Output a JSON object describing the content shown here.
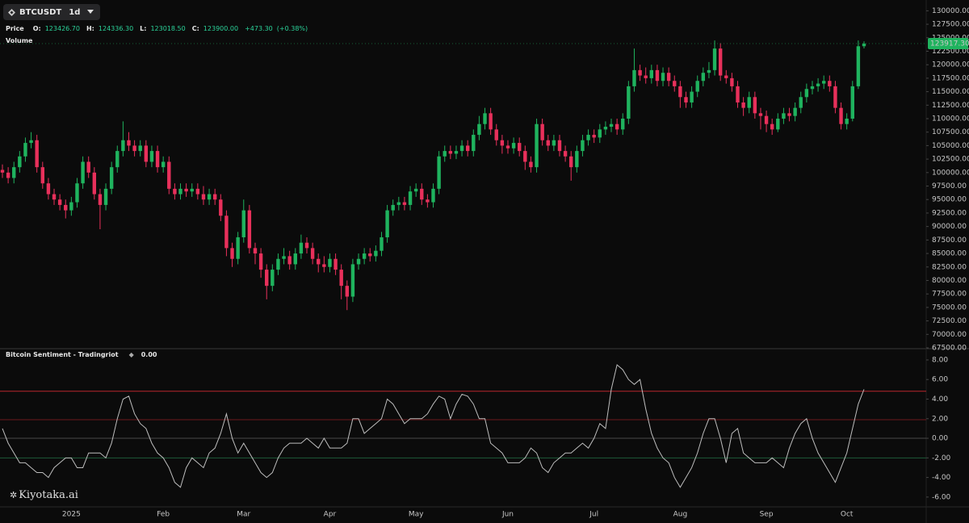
{
  "header": {
    "symbol": "BTCUSDT",
    "interval": "1d",
    "price_label": "Price",
    "ohlc": [
      {
        "label": "O:",
        "value": "123426.70"
      },
      {
        "label": "H:",
        "value": "124336.30"
      },
      {
        "label": "L:",
        "value": "123018.50"
      },
      {
        "label": "C:",
        "value": "123900.00"
      }
    ],
    "change": "+473.30",
    "change_pct": "(+0.38%)",
    "volume_label": "Volume",
    "watermark": "Kiyotaka.ai"
  },
  "chart_data": [
    {
      "type": "candlestick",
      "up_color": "#1fb35e",
      "down_color": "#e8305b",
      "categories": [
        null,
        null,
        null,
        null,
        null,
        null,
        null,
        null,
        null,
        null,
        null,
        null,
        "2025",
        null,
        null,
        null,
        null,
        null,
        null,
        null,
        null,
        null,
        null,
        null,
        null,
        null,
        null,
        null,
        "Feb",
        null,
        null,
        null,
        null,
        null,
        null,
        null,
        null,
        null,
        null,
        null,
        null,
        null,
        "Mar",
        null,
        null,
        null,
        null,
        null,
        null,
        null,
        null,
        null,
        null,
        null,
        null,
        null,
        null,
        "Apr",
        null,
        null,
        null,
        null,
        null,
        null,
        null,
        null,
        null,
        null,
        null,
        null,
        null,
        null,
        "May",
        null,
        null,
        null,
        null,
        null,
        null,
        null,
        null,
        null,
        null,
        null,
        null,
        null,
        null,
        null,
        "Jun",
        null,
        null,
        null,
        null,
        null,
        null,
        null,
        null,
        null,
        null,
        null,
        null,
        null,
        null,
        "Jul",
        null,
        null,
        null,
        null,
        null,
        null,
        null,
        null,
        null,
        null,
        null,
        null,
        null,
        null,
        "Aug",
        null,
        null,
        null,
        null,
        null,
        null,
        null,
        null,
        null,
        null,
        null,
        null,
        null,
        null,
        "Sep",
        null,
        null,
        null,
        null,
        null,
        null,
        null,
        null,
        null,
        null,
        null,
        null,
        null,
        "Oct",
        null,
        null,
        null
      ],
      "open": [
        100500,
        100000,
        99000,
        101000,
        103000,
        105500,
        106000,
        101000,
        98000,
        96000,
        95000,
        94000,
        93000,
        94500,
        98000,
        102000,
        100000,
        96000,
        94000,
        97000,
        101000,
        104000,
        106000,
        105000,
        104000,
        105000,
        102000,
        104000,
        101000,
        102000,
        97000,
        96000,
        97000,
        96500,
        97000,
        96000,
        95000,
        96000,
        95000,
        92000,
        86000,
        84000,
        88000,
        93000,
        86000,
        85000,
        82000,
        79000,
        82000,
        84000,
        84500,
        83000,
        85000,
        87000,
        86000,
        84000,
        83000,
        82500,
        84000,
        82000,
        79000,
        77000,
        83000,
        84000,
        85000,
        84500,
        85500,
        88000,
        93000,
        94000,
        94500,
        94000,
        96500,
        97000,
        95000,
        94500,
        97000,
        103000,
        104000,
        103500,
        104000,
        105000,
        104000,
        107000,
        109000,
        111000,
        108000,
        106000,
        105000,
        104500,
        105500,
        104000,
        102000,
        101000,
        109000,
        106000,
        105000,
        106000,
        104000,
        103000,
        101000,
        104000,
        106000,
        107000,
        106500,
        108000,
        108500,
        109000,
        108000,
        110000,
        116000,
        119000,
        118000,
        117500,
        119000,
        117000,
        118500,
        117000,
        116000,
        114000,
        113000,
        115000,
        117000,
        118500,
        119000,
        123000,
        118000,
        117500,
        116000,
        113000,
        112000,
        114000,
        111000,
        110500,
        109000,
        108000,
        110000,
        111000,
        110500,
        112000,
        114000,
        115500,
        116000,
        116500,
        117000,
        116000,
        112000,
        109000,
        110000,
        116000,
        123426.7
      ],
      "high": [
        101500,
        101000,
        102000,
        104000,
        106500,
        107500,
        107000,
        102000,
        99000,
        97000,
        96000,
        95000,
        95500,
        99000,
        103000,
        103000,
        101000,
        97000,
        98000,
        102000,
        105000,
        109500,
        107500,
        106000,
        106000,
        106000,
        105000,
        105000,
        103000,
        103000,
        98000,
        98000,
        98000,
        98000,
        98000,
        97500,
        97000,
        97000,
        96000,
        93000,
        87000,
        89000,
        95000,
        94000,
        87000,
        86000,
        83000,
        83000,
        85000,
        86000,
        85500,
        86000,
        88500,
        88000,
        87000,
        85000,
        84500,
        85000,
        85000,
        83000,
        80000,
        84000,
        85000,
        86000,
        86000,
        86500,
        89000,
        94000,
        95000,
        95500,
        95500,
        97500,
        98000,
        98000,
        96000,
        98000,
        104000,
        105000,
        105000,
        105000,
        106000,
        106000,
        108000,
        110500,
        112000,
        112000,
        109000,
        107000,
        106000,
        106500,
        106500,
        105000,
        103000,
        110000,
        110000,
        107000,
        107000,
        107000,
        105000,
        104000,
        105000,
        107000,
        108000,
        108000,
        109000,
        109500,
        110000,
        110000,
        111000,
        117000,
        123000,
        120000,
        119500,
        120000,
        120000,
        119500,
        119500,
        118000,
        117000,
        115000,
        116000,
        118000,
        119500,
        120500,
        124500,
        124000,
        119000,
        118500,
        117000,
        114000,
        115000,
        115000,
        112000,
        111500,
        110000,
        111000,
        112000,
        112000,
        113000,
        115000,
        116500,
        117000,
        117500,
        118000,
        118000,
        117000,
        113000,
        111000,
        117000,
        124500,
        124336.3
      ],
      "low": [
        99000,
        98000,
        98000,
        100000,
        102000,
        104500,
        100000,
        97000,
        95000,
        94000,
        93000,
        91500,
        92000,
        93500,
        97000,
        99000,
        95000,
        89500,
        93000,
        96000,
        100000,
        103000,
        104000,
        103000,
        103000,
        101000,
        101000,
        100000,
        100000,
        96000,
        95000,
        95000,
        95500,
        95500,
        95000,
        94000,
        94000,
        94000,
        91000,
        84500,
        82500,
        83000,
        87000,
        85000,
        83000,
        80500,
        76500,
        78000,
        81000,
        83000,
        82000,
        82000,
        84000,
        85000,
        83000,
        81500,
        81500,
        81500,
        81000,
        76500,
        74500,
        76000,
        82000,
        83000,
        83500,
        83500,
        84500,
        87000,
        92000,
        93000,
        93000,
        93000,
        95500,
        94000,
        93500,
        93500,
        96000,
        102000,
        102500,
        102500,
        103000,
        103000,
        103000,
        106000,
        108000,
        107000,
        105000,
        103500,
        103500,
        103500,
        103000,
        100500,
        100000,
        100000,
        105000,
        104000,
        104000,
        103000,
        102000,
        98500,
        100000,
        103000,
        105000,
        105500,
        105500,
        107000,
        107500,
        107000,
        107000,
        109000,
        115000,
        117000,
        116500,
        116500,
        116000,
        116000,
        116000,
        115000,
        112000,
        112000,
        112000,
        114000,
        116000,
        117500,
        118000,
        117000,
        116500,
        115000,
        112000,
        110500,
        111000,
        110000,
        108000,
        107500,
        107000,
        107500,
        109000,
        109500,
        109500,
        111000,
        113000,
        114500,
        115000,
        115500,
        115000,
        111000,
        108000,
        108000,
        109500,
        115500,
        123018.5
      ],
      "close": [
        100000,
        99000,
        101000,
        103000,
        105500,
        106000,
        101000,
        98000,
        96000,
        95000,
        94000,
        93000,
        94500,
        98000,
        102000,
        100000,
        96000,
        94000,
        97000,
        101000,
        104000,
        106000,
        105000,
        104000,
        105000,
        102000,
        104000,
        101000,
        102000,
        97000,
        96000,
        97000,
        96500,
        97000,
        96000,
        95000,
        96000,
        95000,
        92000,
        86000,
        84000,
        88000,
        93000,
        86000,
        85000,
        82000,
        79000,
        82000,
        84000,
        84500,
        83000,
        85000,
        87000,
        86000,
        84000,
        83000,
        82500,
        84000,
        82000,
        79000,
        77000,
        83000,
        84000,
        85000,
        84500,
        85500,
        88000,
        93000,
        94000,
        94500,
        94000,
        96500,
        97000,
        95000,
        94500,
        97000,
        103000,
        104000,
        103500,
        104000,
        105000,
        104000,
        107000,
        109000,
        111000,
        108000,
        106000,
        105000,
        104500,
        105500,
        104000,
        102000,
        101000,
        109000,
        106000,
        105000,
        106000,
        104000,
        103000,
        101000,
        104000,
        106000,
        107000,
        106500,
        108000,
        108500,
        109000,
        108000,
        110000,
        116000,
        119000,
        118000,
        117500,
        119000,
        117000,
        118500,
        117000,
        116000,
        114000,
        113000,
        115000,
        117000,
        118500,
        119000,
        123000,
        118000,
        117500,
        116000,
        113000,
        112000,
        114000,
        111000,
        110500,
        109000,
        108000,
        110000,
        111000,
        110500,
        112000,
        114000,
        115500,
        116000,
        116500,
        117000,
        116000,
        112000,
        109000,
        110000,
        116000,
        123426.7,
        123900
      ],
      "last_price": {
        "value": 123917.3,
        "label": "123917.30"
      },
      "ylim": [
        67500,
        132000
      ],
      "yticks": [
        {
          "value": 67500,
          "label": "67500.00"
        },
        {
          "value": 70000,
          "label": "70000.00"
        },
        {
          "value": 72500,
          "label": "72500.00"
        },
        {
          "value": 75000,
          "label": "75000.00"
        },
        {
          "value": 77500,
          "label": "77500.00"
        },
        {
          "value": 80000,
          "label": "80000.00"
        },
        {
          "value": 82500,
          "label": "82500.00"
        },
        {
          "value": 85000,
          "label": "85000.00"
        },
        {
          "value": 87500,
          "label": "87500.00"
        },
        {
          "value": 90000,
          "label": "90000.00"
        },
        {
          "value": 92500,
          "label": "92500.00"
        },
        {
          "value": 95000,
          "label": "95000.00"
        },
        {
          "value": 97500,
          "label": "97500.00"
        },
        {
          "value": 100000,
          "label": "100000.00"
        },
        {
          "value": 102500,
          "label": "102500.00"
        },
        {
          "value": 105000,
          "label": "105000.00"
        },
        {
          "value": 107500,
          "label": "107500.00"
        },
        {
          "value": 110000,
          "label": "110000.00"
        },
        {
          "value": 112500,
          "label": "112500.00"
        },
        {
          "value": 115000,
          "label": "115000.00"
        },
        {
          "value": 117500,
          "label": "117500.00"
        },
        {
          "value": 120000,
          "label": "120000.00"
        },
        {
          "value": 122500,
          "label": "122500.00"
        },
        {
          "value": 125000,
          "label": "125000.00"
        },
        {
          "value": 127500,
          "label": "127500.00"
        },
        {
          "value": 130000,
          "label": "130000.00"
        }
      ]
    },
    {
      "type": "line",
      "title": "Bitcoin Sentiment - Tradingriot",
      "legend_value": "0.00",
      "color": "#bdbdbd",
      "values": [
        1,
        -0.5,
        -1.5,
        -2.5,
        -2.5,
        -3,
        -3.5,
        -3.5,
        -4,
        -3,
        -2.5,
        -2,
        -2,
        -3,
        -3,
        -1.5,
        -1.5,
        -1.5,
        -2,
        -0.5,
        2,
        4,
        4.3,
        2.5,
        1.5,
        1,
        -0.5,
        -1.5,
        -2,
        -3,
        -4.5,
        -5,
        -3,
        -2,
        -2.5,
        -3,
        -1.5,
        -1,
        0.5,
        2.5,
        0,
        -1.5,
        -0.5,
        -1.5,
        -2.5,
        -3.5,
        -4,
        -3.5,
        -2,
        -1,
        -0.5,
        -0.5,
        -0.5,
        0,
        -0.5,
        -1,
        0,
        -1,
        -1,
        -1,
        -0.5,
        2,
        2,
        0.5,
        1,
        1.5,
        2,
        4,
        3.5,
        2.5,
        1.5,
        2,
        2,
        2,
        2.5,
        3.5,
        4.3,
        4,
        2,
        3.5,
        4.5,
        4.3,
        3.5,
        2,
        2,
        -0.5,
        -1,
        -1.5,
        -2.5,
        -2.5,
        -2.5,
        -2,
        -1,
        -1.5,
        -3,
        -3.5,
        -2.5,
        -2,
        -1.5,
        -1.5,
        -1,
        -0.5,
        -1,
        0,
        1.5,
        1,
        5,
        7.5,
        7,
        6,
        5.5,
        6,
        3,
        0.5,
        -1,
        -2,
        -2.5,
        -4,
        -5,
        -4,
        -3,
        -1.5,
        0.5,
        2,
        2,
        0,
        -2.5,
        0.5,
        1,
        -1.5,
        -2,
        -2.5,
        -2.5,
        -2.5,
        -2,
        -2.5,
        -3,
        -1,
        0.5,
        1.5,
        2,
        0,
        -1.5,
        -2.5,
        -3.5,
        -4.5,
        -3,
        -1.5,
        1,
        3.5,
        5
      ],
      "levels": [
        {
          "value": 4.8,
          "color": "#b8262c"
        },
        {
          "value": 1.9,
          "color": "#6e1a1d"
        },
        {
          "value": 0,
          "color": "#4a4a4a"
        },
        {
          "value": -2,
          "color": "#1e5a38"
        }
      ],
      "ylim": [
        -7,
        9.15
      ],
      "yticks": [
        {
          "value": -6,
          "label": "-6.00"
        },
        {
          "value": -4,
          "label": "-4.00"
        },
        {
          "value": -2,
          "label": "-2.00"
        },
        {
          "value": 0,
          "label": "0.00"
        },
        {
          "value": 2,
          "label": "2.00"
        },
        {
          "value": 4,
          "label": "4.00"
        },
        {
          "value": 6,
          "label": "6.00"
        },
        {
          "value": 8,
          "label": "8.00"
        }
      ]
    }
  ]
}
